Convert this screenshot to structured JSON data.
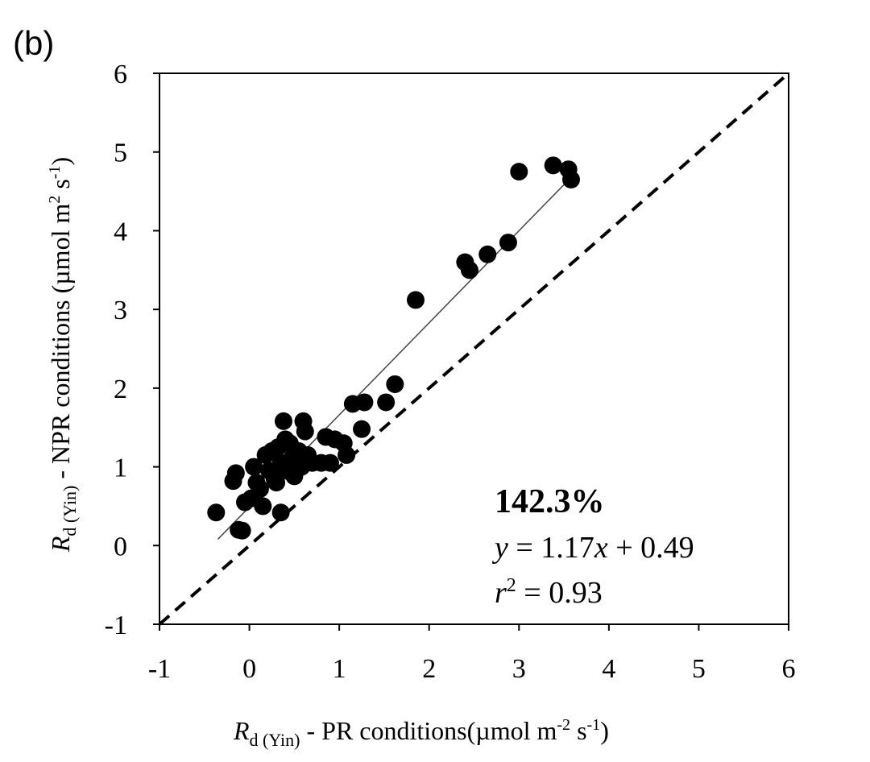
{
  "panel_label": "(b)",
  "chart_data": {
    "type": "scatter",
    "xlabel": {
      "var": "R",
      "sub": "d (Yin)",
      "text": " - PR conditions(µmol m",
      "exp1": "-2",
      "mid": " s",
      "exp2": "-1",
      "end": ")"
    },
    "ylabel": {
      "var": "R",
      "sub": "d (Yin)",
      "text": " - NPR conditions (µmol m",
      "exp1": "2",
      "mid": " s",
      "exp2": "-1",
      "end": ")"
    },
    "xlim": [
      -1,
      6
    ],
    "ylim": [
      -1,
      6
    ],
    "xticks": [
      -1,
      0,
      1,
      2,
      3,
      4,
      5,
      6
    ],
    "yticks": [
      -1,
      0,
      1,
      2,
      3,
      4,
      5,
      6
    ],
    "points": [
      [
        -0.37,
        0.42
      ],
      [
        -0.12,
        0.2
      ],
      [
        -0.08,
        0.19
      ],
      [
        -0.15,
        0.92
      ],
      [
        -0.18,
        0.82
      ],
      [
        -0.05,
        0.55
      ],
      [
        0.02,
        0.6
      ],
      [
        0.08,
        0.8
      ],
      [
        0.05,
        1.0
      ],
      [
        0.12,
        0.72
      ],
      [
        0.15,
        0.5
      ],
      [
        0.18,
        1.15
      ],
      [
        0.22,
        0.95
      ],
      [
        0.25,
        1.2
      ],
      [
        0.28,
        0.85
      ],
      [
        0.32,
        1.25
      ],
      [
        0.35,
        1.05
      ],
      [
        0.38,
        1.58
      ],
      [
        0.4,
        1.35
      ],
      [
        0.42,
        0.95
      ],
      [
        0.45,
        1.3
      ],
      [
        0.48,
        1.12
      ],
      [
        0.5,
        0.88
      ],
      [
        0.55,
        1.2
      ],
      [
        0.58,
        1.0
      ],
      [
        0.6,
        1.58
      ],
      [
        0.62,
        1.45
      ],
      [
        0.65,
        1.15
      ],
      [
        0.7,
        1.05
      ],
      [
        0.35,
        0.42
      ],
      [
        0.3,
        0.8
      ],
      [
        0.8,
        1.05
      ],
      [
        0.85,
        1.38
      ],
      [
        0.9,
        1.05
      ],
      [
        0.95,
        1.35
      ],
      [
        1.05,
        1.3
      ],
      [
        1.08,
        1.15
      ],
      [
        1.15,
        1.8
      ],
      [
        1.25,
        1.48
      ],
      [
        1.28,
        1.82
      ],
      [
        1.52,
        1.82
      ],
      [
        1.62,
        2.05
      ],
      [
        1.85,
        3.12
      ],
      [
        2.4,
        3.6
      ],
      [
        2.45,
        3.5
      ],
      [
        2.65,
        3.7
      ],
      [
        2.88,
        3.85
      ],
      [
        3.0,
        4.75
      ],
      [
        3.38,
        4.83
      ],
      [
        3.55,
        4.78
      ],
      [
        3.58,
        4.65
      ]
    ],
    "fit_line": {
      "slope": 1.17,
      "intercept": 0.49,
      "x_range": [
        -0.35,
        3.55
      ]
    },
    "reference_line": {
      "label": "1:1",
      "slope": 1,
      "intercept": 0
    },
    "annotations": {
      "percent": "142.3%",
      "equation": {
        "y": "y",
        "eq": " = 1.17",
        "x": "x",
        "rest": " + 0.49"
      },
      "r2": {
        "r": "r",
        "exp": "2",
        "rest": " = 0.93"
      }
    },
    "grid": false,
    "legend": "none"
  }
}
